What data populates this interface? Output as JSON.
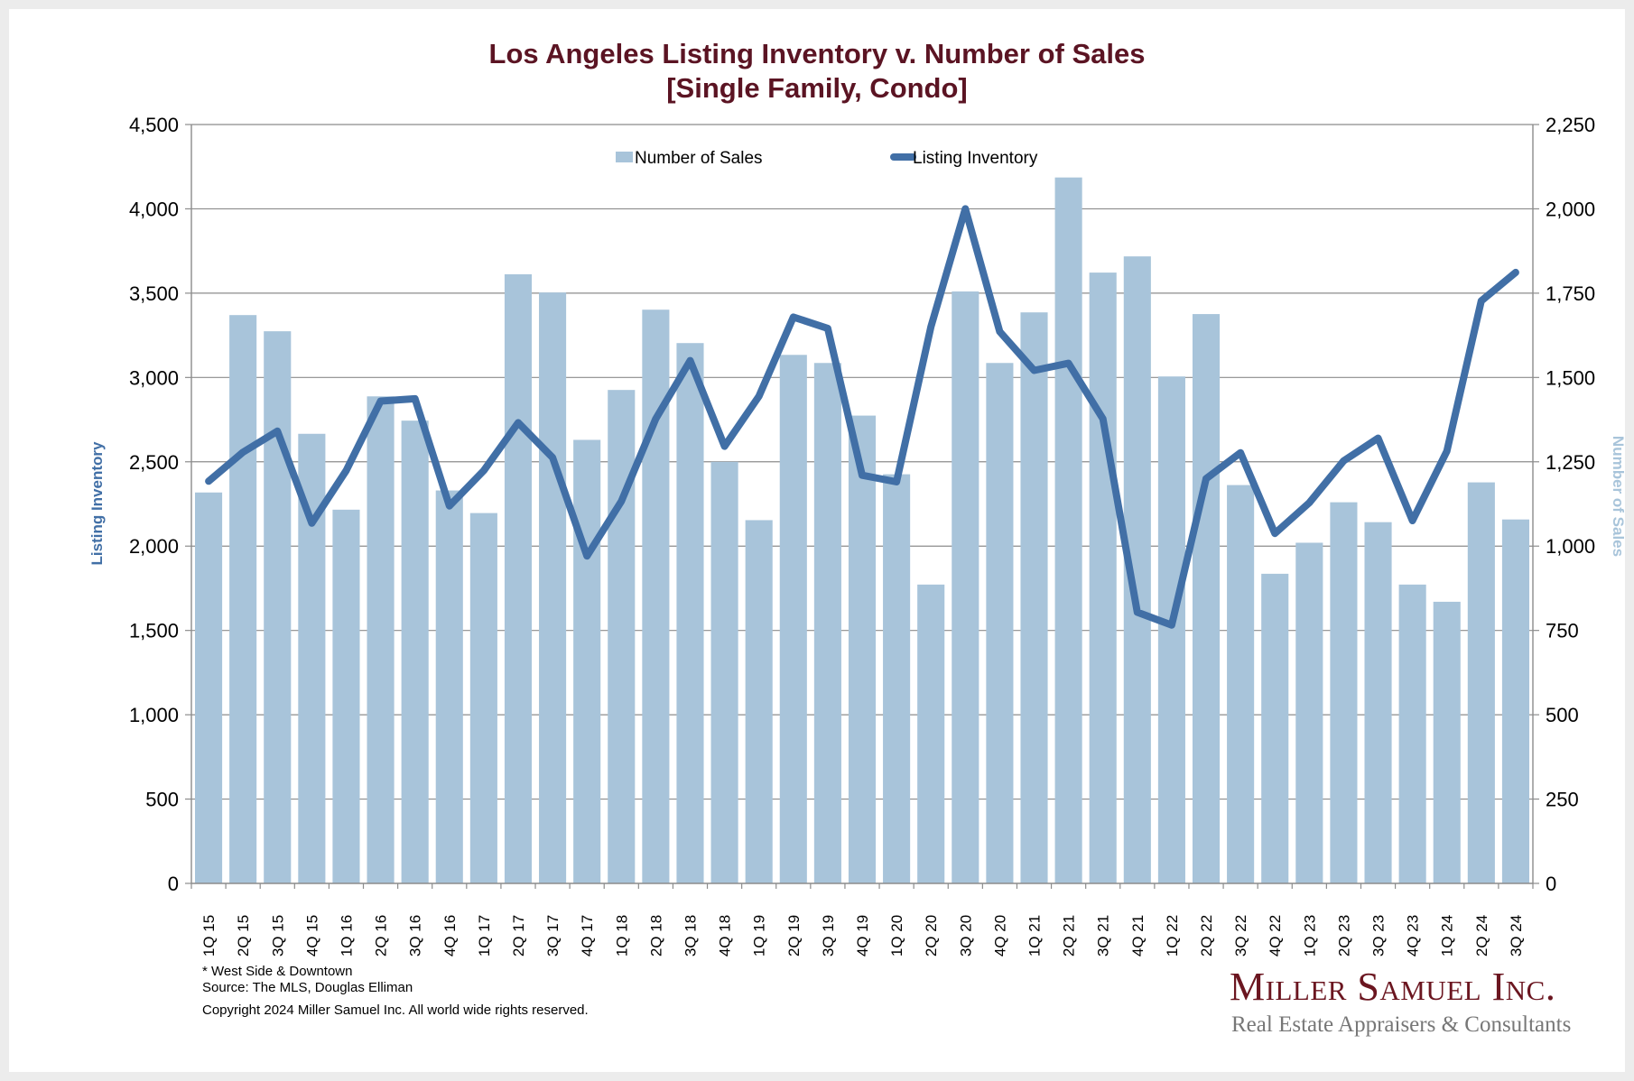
{
  "title_line1": "Los Angeles Listing Inventory v. Number of Sales",
  "title_line2": "[Single Family, Condo]",
  "colors": {
    "title": "#5b1423",
    "bars": "#a8c4da",
    "line": "#416fa6",
    "grid": "#8c8c8c",
    "background": "#ffffff",
    "frame": "#ececec"
  },
  "footnotes": {
    "note": "* West Side & Downtown",
    "source": "Source: The MLS, Douglas Elliman",
    "copyright": "Copyright 2024 Miller Samuel Inc.  All world wide rights reserved."
  },
  "logo": {
    "name": "Miller Samuel Inc.",
    "tagline": "Real Estate Appraisers & Consultants"
  },
  "chart_data": {
    "type": "bar+line (dual axis)",
    "title": "Los Angeles Listing Inventory v. Number of Sales [Single Family, Condo]",
    "xlabel": "",
    "ylabel_left": "Listing Inventory",
    "ylabel_right": "Number of Sales",
    "ylim_left": [
      0,
      4500
    ],
    "ylim_right": [
      0,
      2250
    ],
    "yticks_left": [
      "0",
      "500",
      "1,000",
      "1,500",
      "2,000",
      "2,500",
      "3,000",
      "3,500",
      "4,000",
      "4,500"
    ],
    "yticks_right": [
      "0",
      "250",
      "500",
      "750",
      "1,000",
      "1,250",
      "1,500",
      "1,750",
      "2,000",
      "2,250"
    ],
    "grid": true,
    "legend": "top-center",
    "categories": [
      "1Q 15",
      "2Q 15",
      "3Q 15",
      "4Q 15",
      "1Q 16",
      "2Q 16",
      "3Q 16",
      "4Q 16",
      "1Q 17",
      "2Q 17",
      "3Q 17",
      "4Q 17",
      "1Q 18",
      "2Q 18",
      "3Q 18",
      "4Q 18",
      "1Q 19",
      "2Q 19",
      "3Q 19",
      "4Q 19",
      "1Q 20",
      "2Q 20",
      "3Q 20",
      "4Q 20",
      "1Q 21",
      "2Q 21",
      "3Q 21",
      "4Q 21",
      "1Q 22",
      "2Q 22",
      "3Q 22",
      "4Q 22",
      "1Q 23",
      "2Q 23",
      "3Q 23",
      "4Q 23",
      "1Q 24",
      "2Q 24",
      "3Q 24"
    ],
    "series": [
      {
        "name": "Number of Sales",
        "type": "bar",
        "axis": "right",
        "values": [
          1159,
          1685,
          1637,
          1333,
          1108,
          1444,
          1372,
          1165,
          1098,
          1806,
          1752,
          1315,
          1463,
          1701,
          1602,
          1250,
          1077,
          1567,
          1543,
          1387,
          1213,
          886,
          1755,
          1543,
          1693,
          2093,
          1811,
          1859,
          1503,
          1688,
          1181,
          918,
          1010,
          1130,
          1071,
          886,
          835,
          1189,
          1079
        ]
      },
      {
        "name": "Listing Inventory",
        "type": "line",
        "axis": "left",
        "values": [
          2385,
          2557,
          2682,
          2136,
          2448,
          2860,
          2874,
          2238,
          2448,
          2732,
          2525,
          1941,
          2266,
          2755,
          3100,
          2592,
          2889,
          3358,
          3291,
          2420,
          2381,
          3301,
          4000,
          3272,
          3042,
          3084,
          2755,
          1608,
          1532,
          2400,
          2554,
          2075,
          2257,
          2506,
          2640,
          2151,
          2563,
          3454,
          3623
        ]
      }
    ]
  }
}
